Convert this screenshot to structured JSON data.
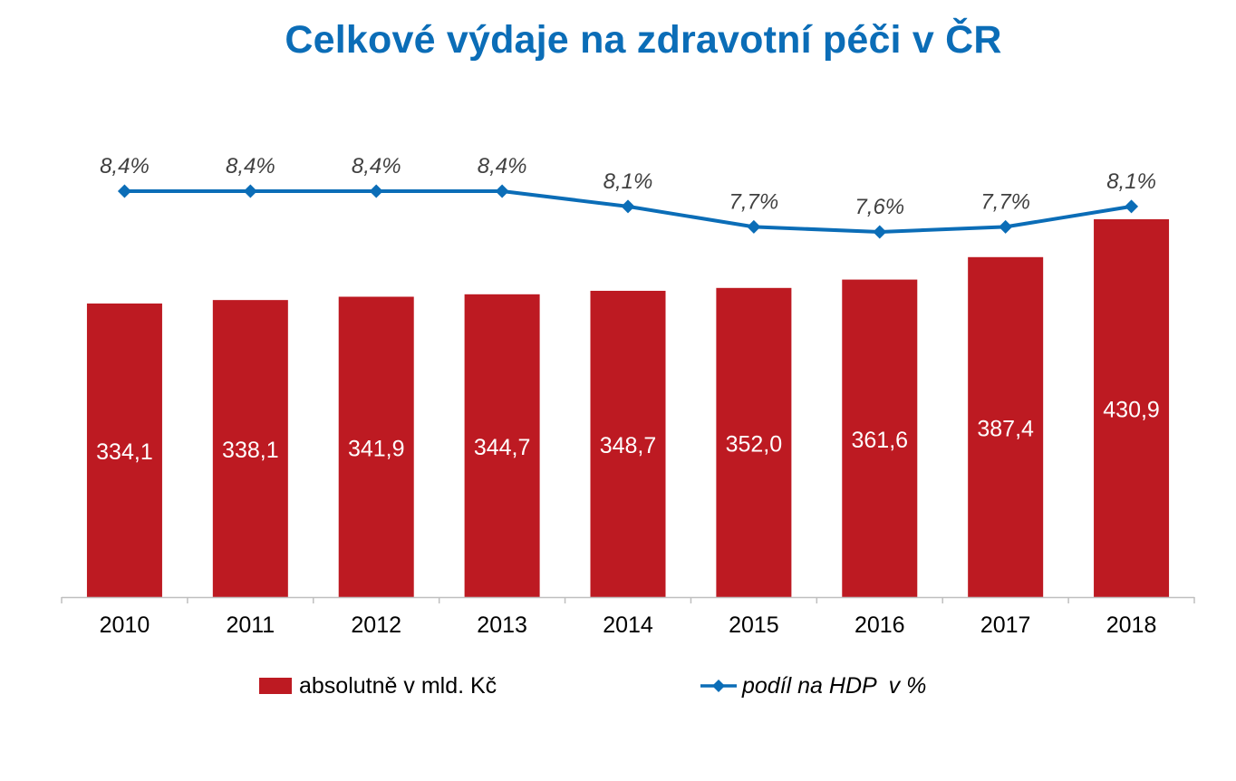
{
  "colors": {
    "title": "#0b6db7",
    "bar": "#bd1a22",
    "line": "#0b6db7",
    "bar_label": "#ffffff",
    "pct_label": "#404040",
    "axis": "#bfbfbf"
  },
  "chart_data": {
    "type": "bar+line",
    "title": "Celkové výdaje na zdravotní péči v ČR",
    "categories": [
      "2010",
      "2011",
      "2012",
      "2013",
      "2014",
      "2015",
      "2016",
      "2017",
      "2018"
    ],
    "series": [
      {
        "name": "absolutně v mld. Kč",
        "type": "bar",
        "values": [
          334.1,
          338.1,
          341.9,
          344.7,
          348.7,
          352.0,
          361.6,
          387.4,
          430.9
        ],
        "labels": [
          "334,1",
          "338,1",
          "341,9",
          "344,7",
          "348,7",
          "352,0",
          "361,6",
          "387,4",
          "430,9"
        ]
      },
      {
        "name": "podíl na HDP  v %",
        "type": "line",
        "values": [
          8.4,
          8.4,
          8.4,
          8.4,
          8.1,
          7.7,
          7.6,
          7.7,
          8.1
        ],
        "labels": [
          "8,4%",
          "8,4%",
          "8,4%",
          "8,4%",
          "8,1%",
          "7,7%",
          "7,6%",
          "7,7%",
          "8,1%"
        ]
      }
    ],
    "xlabel": "",
    "ylabel": "",
    "legend_position": "bottom",
    "grid": false
  }
}
